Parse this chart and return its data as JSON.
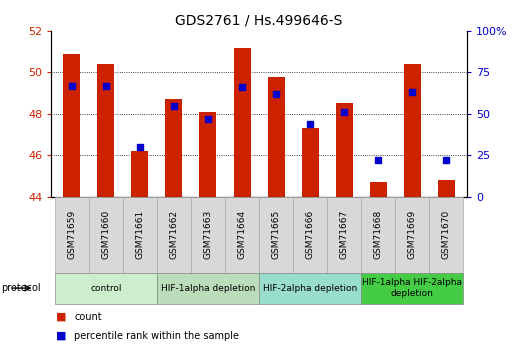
{
  "title": "GDS2761 / Hs.499646-S",
  "samples": [
    "GSM71659",
    "GSM71660",
    "GSM71661",
    "GSM71662",
    "GSM71663",
    "GSM71664",
    "GSM71665",
    "GSM71666",
    "GSM71667",
    "GSM71668",
    "GSM71669",
    "GSM71670"
  ],
  "bar_values": [
    50.9,
    50.4,
    46.2,
    48.7,
    48.1,
    51.2,
    49.8,
    47.3,
    48.5,
    44.7,
    50.4,
    44.8
  ],
  "dot_values": [
    67,
    67,
    30,
    55,
    47,
    66,
    62,
    44,
    51,
    22,
    63,
    22
  ],
  "bar_color": "#cc2200",
  "dot_color": "#0000cc",
  "ylim_left": [
    44,
    52
  ],
  "ylim_right": [
    0,
    100
  ],
  "yticks_left": [
    44,
    46,
    48,
    50,
    52
  ],
  "ytick_labels_left": [
    "44",
    "46",
    "48",
    "50",
    "52"
  ],
  "yticks_right": [
    0,
    25,
    50,
    75,
    100
  ],
  "ytick_labels_right": [
    "0",
    "25",
    "50",
    "75",
    "100%"
  ],
  "bar_bottom": 44,
  "groups": [
    {
      "label": "control",
      "start": 0,
      "end": 3,
      "color": "#cceecc"
    },
    {
      "label": "HIF-1alpha depletion",
      "start": 3,
      "end": 6,
      "color": "#bbddbb"
    },
    {
      "label": "HIF-2alpha depletion",
      "start": 6,
      "end": 9,
      "color": "#99ddcc"
    },
    {
      "label": "HIF-1alpha HIF-2alpha\ndepletion",
      "start": 9,
      "end": 12,
      "color": "#44cc44"
    }
  ],
  "protocol_label": "protocol",
  "legend_items": [
    {
      "label": "count",
      "color": "#cc2200"
    },
    {
      "label": "percentile rank within the sample",
      "color": "#0000cc"
    }
  ],
  "background_color": "#ffffff",
  "tick_color_left": "#cc2200",
  "tick_color_right": "#0000cc",
  "sample_box_color": "#d8d8d8",
  "bar_width": 0.5
}
